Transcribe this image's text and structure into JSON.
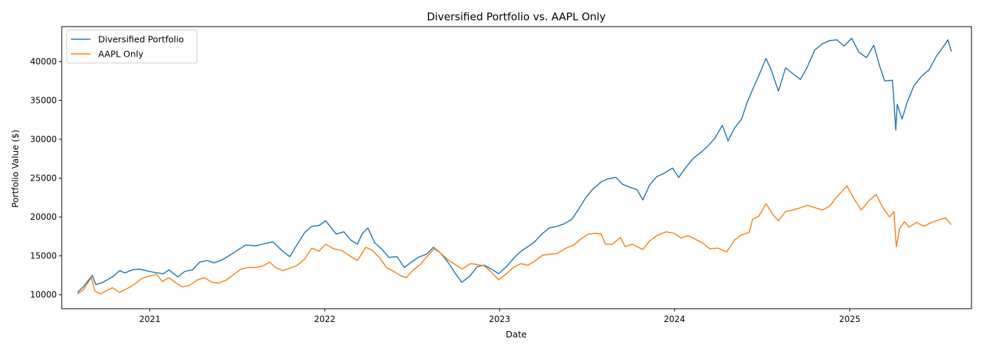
{
  "chart_data": {
    "type": "line",
    "title": "Diversified Portfolio vs. AAPL Only",
    "xlabel": "Date",
    "ylabel": "Portfolio Value ($)",
    "xlim": [
      "2020-07-01",
      "2025-09-12"
    ],
    "ylim": [
      8200,
      44500
    ],
    "x_ticks": [
      "2021-01-01",
      "2022-01-01",
      "2023-01-01",
      "2024-01-01",
      "2025-01-01"
    ],
    "x_tick_labels": [
      "2021",
      "2022",
      "2023",
      "2024",
      "2025"
    ],
    "y_ticks": [
      10000,
      15000,
      20000,
      25000,
      30000,
      35000,
      40000
    ],
    "y_tick_labels": [
      "10000",
      "15000",
      "20000",
      "25000",
      "30000",
      "35000",
      "40000"
    ],
    "grid": false,
    "legend_position": "top-left",
    "colors": {
      "series_0": "#1f77b4",
      "series_1": "#ff7f0e"
    },
    "series": [
      {
        "name": "Diversified Portfolio",
        "points": [
          [
            "2020-08-03",
            10300
          ],
          [
            "2020-08-15",
            11000
          ],
          [
            "2020-08-25",
            11800
          ],
          [
            "2020-09-03",
            12500
          ],
          [
            "2020-09-10",
            11300
          ],
          [
            "2020-09-25",
            11600
          ],
          [
            "2020-10-15",
            12300
          ],
          [
            "2020-10-30",
            13100
          ],
          [
            "2020-11-10",
            12800
          ],
          [
            "2020-11-25",
            13200
          ],
          [
            "2020-12-10",
            13300
          ],
          [
            "2020-12-31",
            13000
          ],
          [
            "2021-01-15",
            12800
          ],
          [
            "2021-01-29",
            12700
          ],
          [
            "2021-02-10",
            13200
          ],
          [
            "2021-02-28",
            12300
          ],
          [
            "2021-03-15",
            13000
          ],
          [
            "2021-03-31",
            13200
          ],
          [
            "2021-04-15",
            14200
          ],
          [
            "2021-05-01",
            14400
          ],
          [
            "2021-05-15",
            14100
          ],
          [
            "2021-06-01",
            14500
          ],
          [
            "2021-06-20",
            15200
          ],
          [
            "2021-07-05",
            15800
          ],
          [
            "2021-07-20",
            16400
          ],
          [
            "2021-08-10",
            16300
          ],
          [
            "2021-08-31",
            16600
          ],
          [
            "2021-09-15",
            16800
          ],
          [
            "2021-10-05",
            15600
          ],
          [
            "2021-10-20",
            14900
          ],
          [
            "2021-11-05",
            16500
          ],
          [
            "2021-11-20",
            18000
          ],
          [
            "2021-12-05",
            18800
          ],
          [
            "2021-12-20",
            18900
          ],
          [
            "2022-01-03",
            19500
          ],
          [
            "2022-01-25",
            17800
          ],
          [
            "2022-02-10",
            18100
          ],
          [
            "2022-02-25",
            17000
          ],
          [
            "2022-03-10",
            16500
          ],
          [
            "2022-03-20",
            17800
          ],
          [
            "2022-04-01",
            18600
          ],
          [
            "2022-04-15",
            16700
          ],
          [
            "2022-05-01",
            15800
          ],
          [
            "2022-05-15",
            14800
          ],
          [
            "2022-06-01",
            14900
          ],
          [
            "2022-06-16",
            13500
          ],
          [
            "2022-07-01",
            14200
          ],
          [
            "2022-07-15",
            14800
          ],
          [
            "2022-08-01",
            15200
          ],
          [
            "2022-08-16",
            16100
          ],
          [
            "2022-09-01",
            15300
          ],
          [
            "2022-09-15",
            14200
          ],
          [
            "2022-09-30",
            12800
          ],
          [
            "2022-10-14",
            11600
          ],
          [
            "2022-10-31",
            12400
          ],
          [
            "2022-11-15",
            13600
          ],
          [
            "2022-11-30",
            13800
          ],
          [
            "2022-12-15",
            13300
          ],
          [
            "2022-12-30",
            12700
          ],
          [
            "2023-01-15",
            13600
          ],
          [
            "2023-02-01",
            14800
          ],
          [
            "2023-02-15",
            15600
          ],
          [
            "2023-03-01",
            16200
          ],
          [
            "2023-03-15",
            16800
          ],
          [
            "2023-04-01",
            17900
          ],
          [
            "2023-04-15",
            18600
          ],
          [
            "2023-05-01",
            18800
          ],
          [
            "2023-05-15",
            19100
          ],
          [
            "2023-06-01",
            19700
          ],
          [
            "2023-06-15",
            21000
          ],
          [
            "2023-07-01",
            22600
          ],
          [
            "2023-07-15",
            23600
          ],
          [
            "2023-08-01",
            24500
          ],
          [
            "2023-08-15",
            24900
          ],
          [
            "2023-09-01",
            25100
          ],
          [
            "2023-09-15",
            24200
          ],
          [
            "2023-10-01",
            23800
          ],
          [
            "2023-10-15",
            23500
          ],
          [
            "2023-10-27",
            22200
          ],
          [
            "2023-11-10",
            24100
          ],
          [
            "2023-11-25",
            25200
          ],
          [
            "2023-12-10",
            25600
          ],
          [
            "2023-12-28",
            26300
          ],
          [
            "2024-01-10",
            25100
          ],
          [
            "2024-01-25",
            26400
          ],
          [
            "2024-02-10",
            27600
          ],
          [
            "2024-02-25",
            28300
          ],
          [
            "2024-03-10",
            29100
          ],
          [
            "2024-03-25",
            30100
          ],
          [
            "2024-04-10",
            31800
          ],
          [
            "2024-04-22",
            29800
          ],
          [
            "2024-05-05",
            31400
          ],
          [
            "2024-05-20",
            32600
          ],
          [
            "2024-06-01",
            34800
          ],
          [
            "2024-06-15",
            36800
          ],
          [
            "2024-06-25",
            38200
          ],
          [
            "2024-07-10",
            40400
          ],
          [
            "2024-07-20",
            39100
          ],
          [
            "2024-08-05",
            36200
          ],
          [
            "2024-08-20",
            39200
          ],
          [
            "2024-09-05",
            38400
          ],
          [
            "2024-09-20",
            37700
          ],
          [
            "2024-10-05",
            39400
          ],
          [
            "2024-10-20",
            41500
          ],
          [
            "2024-11-05",
            42300
          ],
          [
            "2024-11-20",
            42700
          ],
          [
            "2024-12-05",
            42800
          ],
          [
            "2024-12-20",
            42000
          ],
          [
            "2025-01-05",
            43000
          ],
          [
            "2025-01-20",
            41200
          ],
          [
            "2025-02-05",
            40500
          ],
          [
            "2025-02-20",
            42100
          ],
          [
            "2025-03-05",
            39300
          ],
          [
            "2025-03-15",
            37500
          ],
          [
            "2025-03-31",
            37600
          ],
          [
            "2025-04-07",
            31200
          ],
          [
            "2025-04-10",
            34500
          ],
          [
            "2025-04-20",
            32600
          ],
          [
            "2025-05-01",
            34800
          ],
          [
            "2025-05-15",
            36900
          ],
          [
            "2025-06-01",
            38200
          ],
          [
            "2025-06-15",
            38900
          ],
          [
            "2025-07-01",
            40700
          ],
          [
            "2025-07-15",
            41900
          ],
          [
            "2025-07-25",
            42800
          ],
          [
            "2025-08-01",
            41300
          ]
        ]
      },
      {
        "name": "AAPL Only",
        "points": [
          [
            "2020-08-03",
            10100
          ],
          [
            "2020-08-15",
            10600
          ],
          [
            "2020-08-25",
            11600
          ],
          [
            "2020-09-01",
            12200
          ],
          [
            "2020-09-08",
            10500
          ],
          [
            "2020-09-20",
            10100
          ],
          [
            "2020-10-05",
            10600
          ],
          [
            "2020-10-15",
            10900
          ],
          [
            "2020-10-30",
            10300
          ],
          [
            "2020-11-15",
            10800
          ],
          [
            "2020-12-01",
            11400
          ],
          [
            "2020-12-15",
            12100
          ],
          [
            "2020-12-31",
            12400
          ],
          [
            "2021-01-15",
            12600
          ],
          [
            "2021-01-27",
            11700
          ],
          [
            "2021-02-10",
            12200
          ],
          [
            "2021-02-25",
            11500
          ],
          [
            "2021-03-10",
            11000
          ],
          [
            "2021-03-25",
            11200
          ],
          [
            "2021-04-10",
            11900
          ],
          [
            "2021-04-25",
            12200
          ],
          [
            "2021-05-10",
            11600
          ],
          [
            "2021-05-25",
            11500
          ],
          [
            "2021-06-10",
            11900
          ],
          [
            "2021-06-25",
            12600
          ],
          [
            "2021-07-10",
            13300
          ],
          [
            "2021-07-25",
            13500
          ],
          [
            "2021-08-10",
            13500
          ],
          [
            "2021-08-25",
            13700
          ],
          [
            "2021-09-08",
            14200
          ],
          [
            "2021-09-20",
            13500
          ],
          [
            "2021-10-05",
            13100
          ],
          [
            "2021-10-20",
            13400
          ],
          [
            "2021-11-05",
            13800
          ],
          [
            "2021-11-20",
            14600
          ],
          [
            "2021-12-05",
            16000
          ],
          [
            "2021-12-20",
            15600
          ],
          [
            "2022-01-03",
            16500
          ],
          [
            "2022-01-20",
            15900
          ],
          [
            "2022-02-05",
            15700
          ],
          [
            "2022-02-25",
            14900
          ],
          [
            "2022-03-10",
            14400
          ],
          [
            "2022-03-28",
            16100
          ],
          [
            "2022-04-10",
            15700
          ],
          [
            "2022-04-25",
            14800
          ],
          [
            "2022-05-10",
            13500
          ],
          [
            "2022-05-25",
            13000
          ],
          [
            "2022-06-10",
            12400
          ],
          [
            "2022-06-20",
            12200
          ],
          [
            "2022-07-05",
            13200
          ],
          [
            "2022-07-20",
            13900
          ],
          [
            "2022-08-05",
            15100
          ],
          [
            "2022-08-18",
            15900
          ],
          [
            "2022-09-01",
            15300
          ],
          [
            "2022-09-15",
            14500
          ],
          [
            "2022-09-30",
            13900
          ],
          [
            "2022-10-15",
            13300
          ],
          [
            "2022-11-01",
            14000
          ],
          [
            "2022-11-15",
            13900
          ],
          [
            "2022-11-30",
            13700
          ],
          [
            "2022-12-15",
            12900
          ],
          [
            "2022-12-30",
            11900
          ],
          [
            "2023-01-15",
            12700
          ],
          [
            "2023-02-01",
            13600
          ],
          [
            "2023-02-15",
            14000
          ],
          [
            "2023-03-01",
            13800
          ],
          [
            "2023-03-15",
            14300
          ],
          [
            "2023-04-01",
            15100
          ],
          [
            "2023-04-15",
            15200
          ],
          [
            "2023-05-01",
            15300
          ],
          [
            "2023-05-20",
            16000
          ],
          [
            "2023-06-05",
            16400
          ],
          [
            "2023-06-20",
            17200
          ],
          [
            "2023-07-05",
            17800
          ],
          [
            "2023-07-20",
            17900
          ],
          [
            "2023-08-01",
            17800
          ],
          [
            "2023-08-10",
            16500
          ],
          [
            "2023-08-25",
            16500
          ],
          [
            "2023-09-10",
            17400
          ],
          [
            "2023-09-20",
            16200
          ],
          [
            "2023-10-05",
            16500
          ],
          [
            "2023-10-27",
            15800
          ],
          [
            "2023-11-10",
            16900
          ],
          [
            "2023-11-25",
            17600
          ],
          [
            "2023-12-15",
            18100
          ],
          [
            "2023-12-31",
            17900
          ],
          [
            "2024-01-15",
            17300
          ],
          [
            "2024-01-30",
            17600
          ],
          [
            "2024-02-15",
            17100
          ],
          [
            "2024-03-01",
            16600
          ],
          [
            "2024-03-15",
            15900
          ],
          [
            "2024-04-01",
            16000
          ],
          [
            "2024-04-19",
            15500
          ],
          [
            "2024-05-05",
            17000
          ],
          [
            "2024-05-20",
            17700
          ],
          [
            "2024-06-05",
            18000
          ],
          [
            "2024-06-12",
            19700
          ],
          [
            "2024-06-25",
            20100
          ],
          [
            "2024-07-10",
            21700
          ],
          [
            "2024-07-25",
            20300
          ],
          [
            "2024-08-05",
            19500
          ],
          [
            "2024-08-20",
            20700
          ],
          [
            "2024-09-05",
            20900
          ],
          [
            "2024-09-20",
            21200
          ],
          [
            "2024-10-05",
            21500
          ],
          [
            "2024-10-20",
            21200
          ],
          [
            "2024-11-05",
            20900
          ],
          [
            "2024-11-20",
            21400
          ],
          [
            "2024-12-05",
            22600
          ],
          [
            "2024-12-26",
            24000
          ],
          [
            "2025-01-10",
            22300
          ],
          [
            "2025-01-25",
            20900
          ],
          [
            "2025-02-10",
            22100
          ],
          [
            "2025-02-25",
            22900
          ],
          [
            "2025-03-10",
            21300
          ],
          [
            "2025-03-25",
            20000
          ],
          [
            "2025-04-03",
            20700
          ],
          [
            "2025-04-08",
            16200
          ],
          [
            "2025-04-15",
            18500
          ],
          [
            "2025-04-25",
            19400
          ],
          [
            "2025-05-05",
            18700
          ],
          [
            "2025-05-20",
            19300
          ],
          [
            "2025-06-05",
            18800
          ],
          [
            "2025-06-20",
            19300
          ],
          [
            "2025-07-05",
            19600
          ],
          [
            "2025-07-20",
            19900
          ],
          [
            "2025-08-01",
            19000
          ]
        ]
      }
    ]
  }
}
